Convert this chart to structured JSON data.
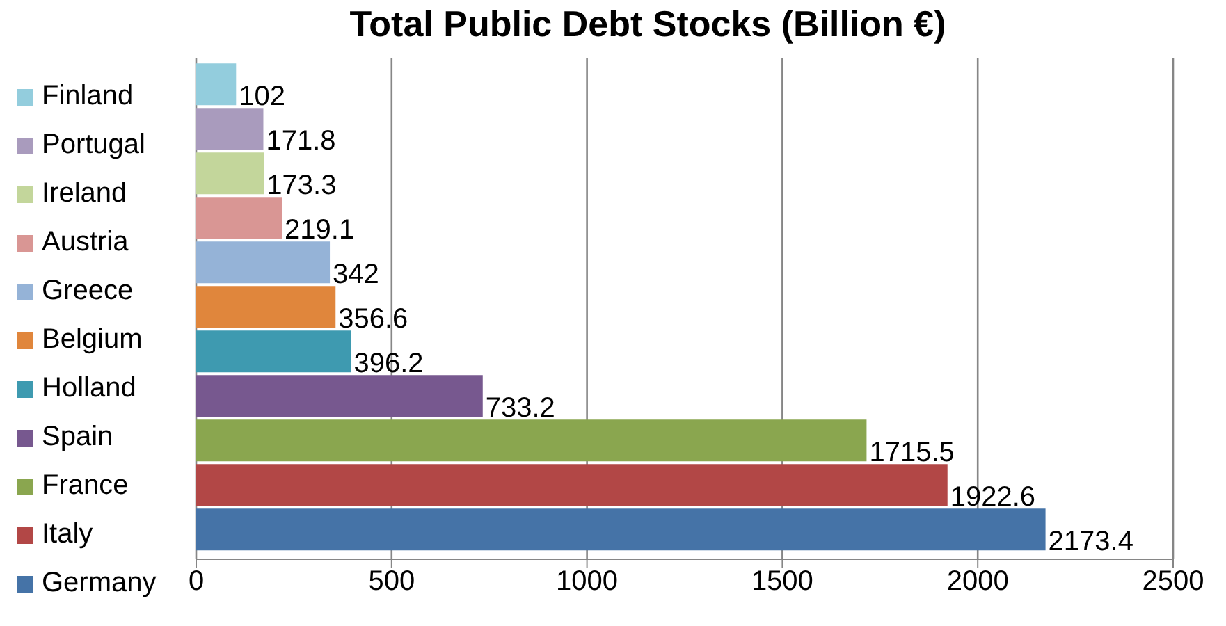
{
  "chart_data": {
    "type": "bar",
    "orientation": "horizontal",
    "title": "Total Public Debt Stocks (Billion €)",
    "categories": [
      null
    ],
    "series": [
      {
        "name": "Finland",
        "color": "#93cddd",
        "values": [
          102
        ]
      },
      {
        "name": "Portugal",
        "color": "#a99bbd",
        "values": [
          171.8
        ]
      },
      {
        "name": "Ireland",
        "color": "#c3d69b",
        "values": [
          173.3
        ]
      },
      {
        "name": "Austria",
        "color": "#d99694",
        "values": [
          219.1
        ]
      },
      {
        "name": "Greece",
        "color": "#95b3d7",
        "values": [
          342
        ]
      },
      {
        "name": "Belgium",
        "color": "#e0863c",
        "values": [
          356.6
        ]
      },
      {
        "name": "Holland",
        "color": "#3e9ab0",
        "values": [
          396.2
        ]
      },
      {
        "name": "Spain",
        "color": "#77588f",
        "values": [
          733.2
        ]
      },
      {
        "name": "France",
        "color": "#8aa64f",
        "values": [
          1715.5
        ]
      },
      {
        "name": "Italy",
        "color": "#b24746",
        "values": [
          1922.6
        ]
      },
      {
        "name": "Germany",
        "color": "#4573a7",
        "values": [
          2173.4
        ]
      }
    ],
    "xlim": [
      0,
      2500
    ],
    "xticks": [
      0,
      500,
      1000,
      1500,
      2000,
      2500
    ],
    "grid": "x",
    "legend": "left",
    "data_labels": true,
    "tick_labels": "x"
  }
}
